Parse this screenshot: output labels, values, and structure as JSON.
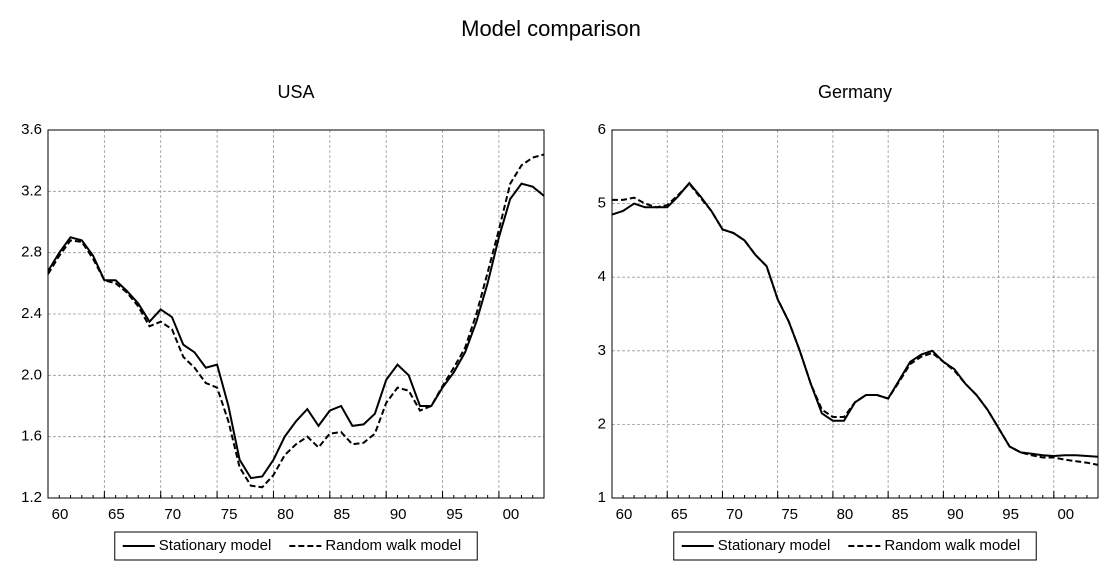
{
  "title": "Model comparison",
  "chart_data": [
    {
      "type": "line",
      "title": "USA",
      "x": [
        1960,
        1961,
        1962,
        1963,
        1964,
        1965,
        1966,
        1967,
        1968,
        1969,
        1970,
        1971,
        1972,
        1973,
        1974,
        1975,
        1976,
        1977,
        1978,
        1979,
        1980,
        1981,
        1982,
        1983,
        1984,
        1985,
        1986,
        1987,
        1988,
        1989,
        1990,
        1991,
        1992,
        1993,
        1994,
        1995,
        1996,
        1997,
        1998,
        1999,
        2000,
        2001,
        2002,
        2003,
        2004
      ],
      "series": [
        {
          "name": "Stationary model",
          "color": "#000000",
          "dash": "solid",
          "values": [
            2.68,
            2.8,
            2.9,
            2.88,
            2.78,
            2.62,
            2.62,
            2.55,
            2.47,
            2.35,
            2.43,
            2.38,
            2.2,
            2.15,
            2.05,
            2.07,
            1.8,
            1.45,
            1.33,
            1.34,
            1.45,
            1.6,
            1.7,
            1.78,
            1.67,
            1.77,
            1.8,
            1.67,
            1.68,
            1.75,
            1.97,
            2.07,
            2.0,
            1.8,
            1.8,
            1.92,
            2.02,
            2.15,
            2.35,
            2.6,
            2.9,
            3.15,
            3.25,
            3.23,
            3.17
          ]
        },
        {
          "name": "Random walk model",
          "color": "#000000",
          "dash": "dashed",
          "values": [
            2.66,
            2.78,
            2.88,
            2.87,
            2.76,
            2.62,
            2.6,
            2.54,
            2.45,
            2.32,
            2.35,
            2.3,
            2.12,
            2.05,
            1.95,
            1.92,
            1.7,
            1.4,
            1.28,
            1.27,
            1.35,
            1.48,
            1.55,
            1.6,
            1.53,
            1.62,
            1.63,
            1.55,
            1.56,
            1.62,
            1.82,
            1.92,
            1.9,
            1.77,
            1.8,
            1.93,
            2.05,
            2.18,
            2.4,
            2.67,
            2.95,
            3.25,
            3.37,
            3.42,
            3.44
          ]
        }
      ],
      "xlim": [
        1960,
        2004
      ],
      "xticks": [
        {
          "value": 1960,
          "label": "60"
        },
        {
          "value": 1965,
          "label": "65"
        },
        {
          "value": 1970,
          "label": "70"
        },
        {
          "value": 1975,
          "label": "75"
        },
        {
          "value": 1980,
          "label": "80"
        },
        {
          "value": 1985,
          "label": "85"
        },
        {
          "value": 1990,
          "label": "90"
        },
        {
          "value": 1995,
          "label": "95"
        },
        {
          "value": 2000,
          "label": "00"
        }
      ],
      "ylim": [
        1.2,
        3.6
      ],
      "yticks": [
        1.2,
        1.6,
        {
          "value": 2,
          "label": "2.0"
        },
        2.4,
        2.8,
        3.2,
        3.6
      ],
      "grid": true,
      "legend": "bottom"
    },
    {
      "type": "line",
      "title": "Germany",
      "x": [
        1960,
        1961,
        1962,
        1963,
        1964,
        1965,
        1966,
        1967,
        1968,
        1969,
        1970,
        1971,
        1972,
        1973,
        1974,
        1975,
        1976,
        1977,
        1978,
        1979,
        1980,
        1981,
        1982,
        1983,
        1984,
        1985,
        1986,
        1987,
        1988,
        1989,
        1990,
        1991,
        1992,
        1993,
        1994,
        1995,
        1996,
        1997,
        1998,
        1999,
        2000,
        2001,
        2002,
        2003,
        2004
      ],
      "series": [
        {
          "name": "Stationary model",
          "color": "#000000",
          "dash": "solid",
          "values": [
            4.85,
            4.9,
            5.0,
            4.95,
            4.95,
            4.95,
            5.1,
            5.28,
            5.1,
            4.9,
            4.65,
            4.6,
            4.5,
            4.3,
            4.15,
            3.7,
            3.4,
            3.0,
            2.55,
            2.15,
            2.05,
            2.05,
            2.3,
            2.4,
            2.4,
            2.35,
            2.6,
            2.85,
            2.95,
            3.0,
            2.85,
            2.75,
            2.55,
            2.4,
            2.2,
            1.95,
            1.7,
            1.62,
            1.6,
            1.58,
            1.57,
            1.58,
            1.58,
            1.57,
            1.56
          ]
        },
        {
          "name": "Random walk model",
          "color": "#000000",
          "dash": "dashed",
          "values": [
            5.05,
            5.05,
            5.08,
            5.0,
            4.95,
            4.98,
            5.12,
            5.27,
            5.08,
            4.9,
            4.65,
            4.6,
            4.5,
            4.3,
            4.15,
            3.7,
            3.4,
            3.0,
            2.55,
            2.2,
            2.1,
            2.1,
            2.3,
            2.4,
            2.4,
            2.35,
            2.58,
            2.82,
            2.92,
            2.97,
            2.85,
            2.73,
            2.55,
            2.4,
            2.2,
            1.95,
            1.7,
            1.62,
            1.58,
            1.55,
            1.55,
            1.52,
            1.5,
            1.48,
            1.45
          ]
        }
      ],
      "xlim": [
        1960,
        2004
      ],
      "xticks": [
        {
          "value": 1960,
          "label": "60"
        },
        {
          "value": 1965,
          "label": "65"
        },
        {
          "value": 1970,
          "label": "70"
        },
        {
          "value": 1975,
          "label": "75"
        },
        {
          "value": 1980,
          "label": "80"
        },
        {
          "value": 1985,
          "label": "85"
        },
        {
          "value": 1990,
          "label": "90"
        },
        {
          "value": 1995,
          "label": "95"
        },
        {
          "value": 2000,
          "label": "00"
        }
      ],
      "ylim": [
        1,
        6
      ],
      "yticks": [
        1,
        2,
        3,
        4,
        5,
        6
      ],
      "grid": true,
      "legend": "bottom"
    }
  ]
}
